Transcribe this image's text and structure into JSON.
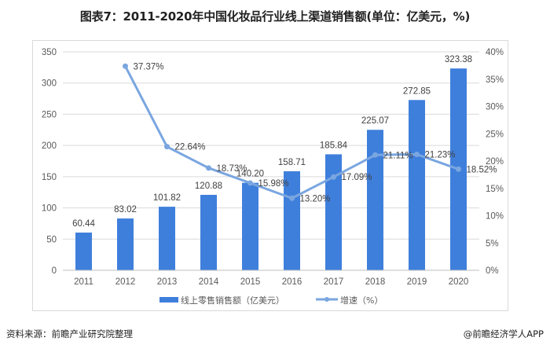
{
  "title": "图表7：2011-2020年中国化妆品行业线上渠道销售额(单位：亿美元，%)",
  "footer": {
    "source": "资料来源：前瞻产业研究院整理",
    "credit": "@前瞻经济学人APP"
  },
  "colors": {
    "bar": "#3f7fdc",
    "line": "#7aa6e0",
    "grid": "#d9d9d9"
  },
  "chart_data": {
    "type": "bar",
    "title": "图表7：2011-2020年中国化妆品行业线上渠道销售额(单位：亿美元，%)",
    "categories": [
      "2011",
      "2012",
      "2013",
      "2014",
      "2015",
      "2016",
      "2017",
      "2018",
      "2019",
      "2020"
    ],
    "series": [
      {
        "name": "线上零售销售额（亿美元）",
        "type": "bar",
        "axis": "left",
        "values": [
          60.44,
          83.02,
          101.82,
          120.88,
          140.2,
          158.71,
          185.84,
          225.07,
          272.85,
          323.38
        ],
        "labels": [
          "60.44",
          "83.02",
          "101.82",
          "120.88",
          "140.20",
          "158.71",
          "185.84",
          "225.07",
          "272.85",
          "323.38"
        ]
      },
      {
        "name": "增速（%）",
        "type": "line",
        "axis": "right",
        "values": [
          null,
          37.37,
          22.64,
          18.73,
          15.98,
          13.2,
          17.09,
          21.11,
          21.23,
          18.52
        ],
        "labels": [
          "",
          "37.37%",
          "22.64%",
          "18.73%",
          "15.98%",
          "13.20%",
          "17.09%",
          "21.11%",
          "21.23%",
          "18.52%"
        ]
      }
    ],
    "left_axis": {
      "ylim": [
        0,
        350
      ],
      "ticks": [
        "0",
        "50",
        "100",
        "150",
        "200",
        "250",
        "300",
        "350"
      ]
    },
    "right_axis": {
      "ylim": [
        0,
        40
      ],
      "ticks": [
        "0%",
        "5%",
        "10%",
        "15%",
        "20%",
        "25%",
        "30%",
        "35%",
        "40%"
      ]
    },
    "xlabel": "",
    "ylabel": "",
    "grid": true,
    "legend_position": "bottom",
    "legend": [
      "线上零售销售额（亿美元）",
      "增速（%）"
    ]
  }
}
